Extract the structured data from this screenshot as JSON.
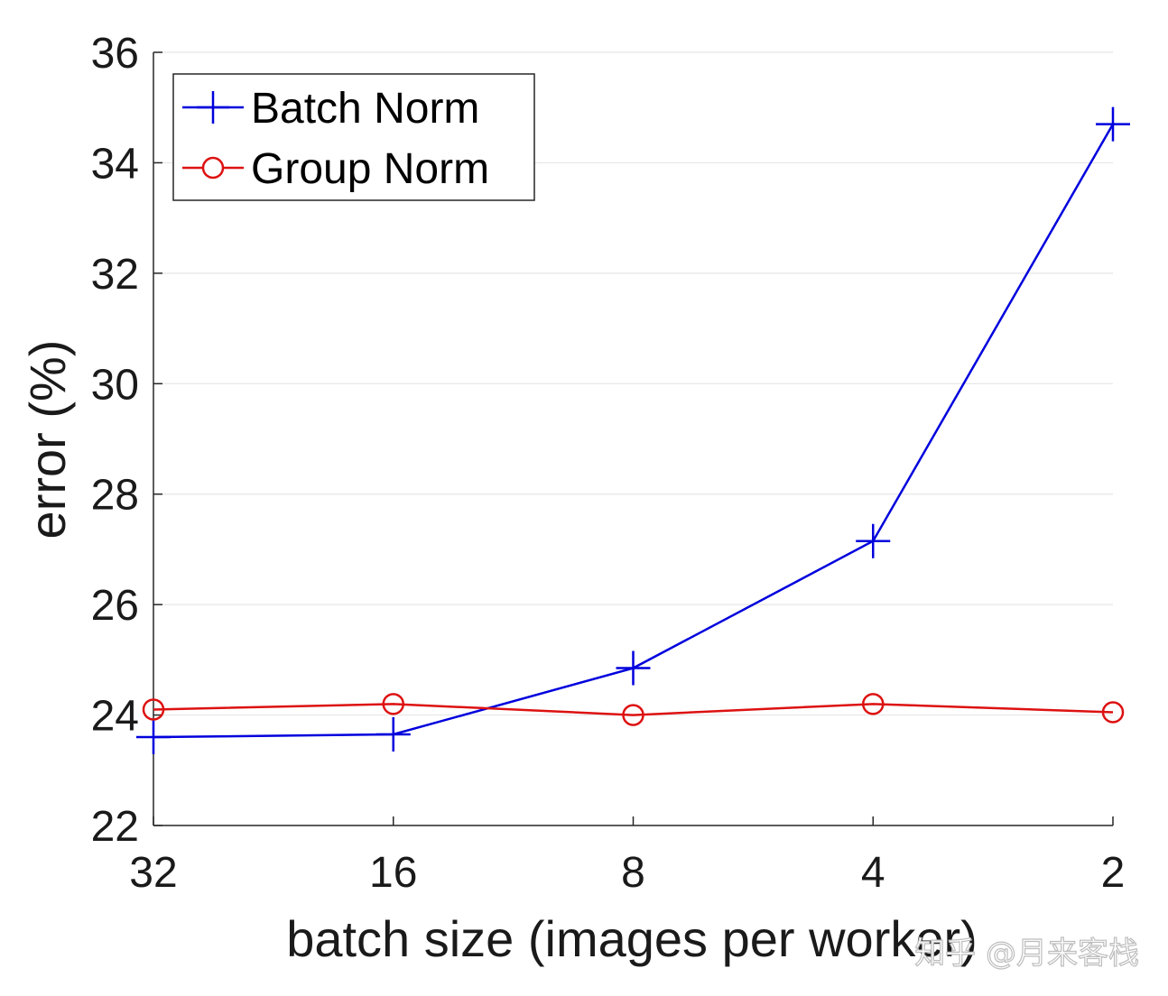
{
  "chart_data": {
    "type": "line",
    "xlabel": "batch size (images per worker)",
    "ylabel": "error (%)",
    "categories": [
      "32",
      "16",
      "8",
      "4",
      "2"
    ],
    "ylim": [
      22,
      36
    ],
    "yticks": [
      "22",
      "24",
      "26",
      "28",
      "30",
      "32",
      "34",
      "36"
    ],
    "grid": "horizontal",
    "legend_position": "top-left",
    "series": [
      {
        "name": "Batch Norm",
        "values": [
          23.6,
          23.65,
          24.85,
          27.15,
          34.7
        ],
        "color": "#0000dd",
        "marker": "plus"
      },
      {
        "name": "Group Norm",
        "values": [
          24.1,
          24.2,
          24.0,
          24.2,
          24.05
        ],
        "color": "#dd1111",
        "marker": "circle"
      }
    ]
  },
  "watermark": "知乎 @月来客栈"
}
